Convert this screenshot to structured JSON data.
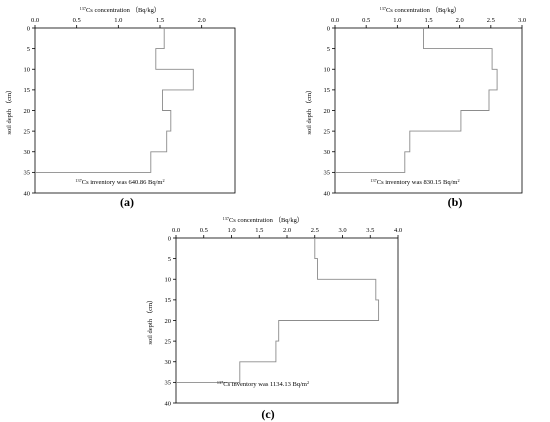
{
  "colors": {
    "axis": "#000000",
    "profile_line": "#8c8c8c",
    "background": "#ffffff"
  },
  "panels": [
    {
      "letter": "(a)"
    },
    {
      "letter": "(b)"
    },
    {
      "letter": "(c)"
    }
  ],
  "chart_data": [
    {
      "type": "line",
      "panel": "(a)",
      "xlabel": "137Cs concentration （Bq/kg）",
      "ylabel": "soil depth （cm）",
      "xlim": [
        0,
        2.4
      ],
      "ylim": [
        0,
        40
      ],
      "y_inverted": true,
      "x_axis_position": "top",
      "xticks": [
        0.0,
        0.5,
        1.0,
        1.5,
        2.0
      ],
      "xtick_labels": [
        "0.0",
        "0.5",
        "1.0",
        "1.5",
        "2.0"
      ],
      "yticks": [
        0,
        5,
        10,
        15,
        20,
        25,
        30,
        35,
        40
      ],
      "annotation": "137Cs inventory was 640.86 Bq/m2",
      "profile": [
        {
          "x": 1.55,
          "y": 0
        },
        {
          "x": 1.55,
          "y": 5
        },
        {
          "x": 1.45,
          "y": 5
        },
        {
          "x": 1.45,
          "y": 10
        },
        {
          "x": 1.9,
          "y": 10
        },
        {
          "x": 1.9,
          "y": 15
        },
        {
          "x": 1.53,
          "y": 15
        },
        {
          "x": 1.53,
          "y": 20
        },
        {
          "x": 1.63,
          "y": 20
        },
        {
          "x": 1.63,
          "y": 25
        },
        {
          "x": 1.58,
          "y": 25
        },
        {
          "x": 1.58,
          "y": 30
        },
        {
          "x": 1.39,
          "y": 30
        },
        {
          "x": 1.39,
          "y": 35
        },
        {
          "x": 0,
          "y": 35
        }
      ]
    },
    {
      "type": "line",
      "panel": "(b)",
      "xlabel": "137Cs concentration （Bq/kg）",
      "ylabel": "soil depth （cm）",
      "xlim": [
        0,
        3.0
      ],
      "ylim": [
        0,
        40
      ],
      "y_inverted": true,
      "x_axis_position": "top",
      "xticks": [
        0.0,
        0.5,
        1.0,
        1.5,
        2.0,
        2.5,
        3.0
      ],
      "xtick_labels": [
        "0.0",
        "0.5",
        "1.0",
        "1.5",
        "2.0",
        "2.5",
        "3.0"
      ],
      "yticks": [
        0,
        5,
        10,
        15,
        20,
        25,
        30,
        35,
        40
      ],
      "annotation": "137Cs inventory was 830.15 Bq/m2",
      "profile": [
        {
          "x": 1.42,
          "y": 0
        },
        {
          "x": 1.42,
          "y": 5
        },
        {
          "x": 2.52,
          "y": 5
        },
        {
          "x": 2.52,
          "y": 10
        },
        {
          "x": 2.6,
          "y": 10
        },
        {
          "x": 2.6,
          "y": 15
        },
        {
          "x": 2.47,
          "y": 15
        },
        {
          "x": 2.47,
          "y": 20
        },
        {
          "x": 2.02,
          "y": 20
        },
        {
          "x": 2.02,
          "y": 25
        },
        {
          "x": 1.2,
          "y": 25
        },
        {
          "x": 1.2,
          "y": 30
        },
        {
          "x": 1.12,
          "y": 30
        },
        {
          "x": 1.12,
          "y": 35
        },
        {
          "x": 0,
          "y": 35
        }
      ]
    },
    {
      "type": "line",
      "panel": "(c)",
      "xlabel": "137Cs concentration （Bq/kg）",
      "ylabel": "soil depth （cm）",
      "xlim": [
        0,
        4.0
      ],
      "ylim": [
        0,
        40
      ],
      "y_inverted": true,
      "x_axis_position": "top",
      "xticks": [
        0.0,
        0.5,
        1.0,
        1.5,
        2.0,
        2.5,
        3.0,
        3.5,
        4.0
      ],
      "xtick_labels": [
        "0.0",
        "0.5",
        "1.0",
        "1.5",
        "2.0",
        "2.5",
        "3.0",
        "3.5",
        "4.0"
      ],
      "yticks": [
        0,
        5,
        10,
        15,
        20,
        25,
        30,
        35,
        40
      ],
      "annotation": "137Cs inventory was 1134.13 Bq/m2",
      "profile": [
        {
          "x": 2.5,
          "y": 0
        },
        {
          "x": 2.5,
          "y": 5
        },
        {
          "x": 2.55,
          "y": 5
        },
        {
          "x": 2.55,
          "y": 10
        },
        {
          "x": 3.6,
          "y": 10
        },
        {
          "x": 3.6,
          "y": 15
        },
        {
          "x": 3.65,
          "y": 15
        },
        {
          "x": 3.65,
          "y": 20
        },
        {
          "x": 1.85,
          "y": 20
        },
        {
          "x": 1.85,
          "y": 25
        },
        {
          "x": 1.8,
          "y": 25
        },
        {
          "x": 1.8,
          "y": 30
        },
        {
          "x": 1.15,
          "y": 30
        },
        {
          "x": 1.15,
          "y": 35
        },
        {
          "x": 0,
          "y": 35
        }
      ]
    }
  ]
}
